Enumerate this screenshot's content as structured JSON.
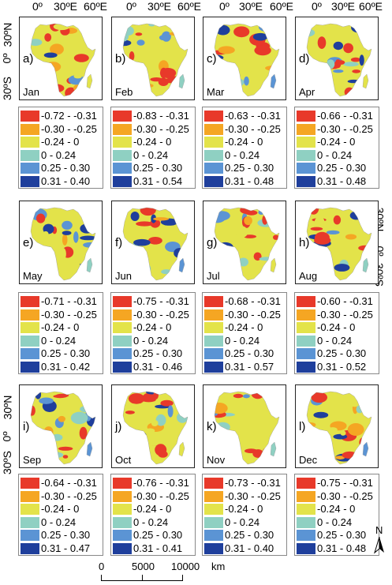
{
  "axes": {
    "top_labels": [
      "0º",
      "30ºE",
      "60ºE"
    ],
    "lat_labels": [
      "30ºN",
      "0º",
      "30ºS"
    ]
  },
  "colors": [
    "#e8392a",
    "#f5a623",
    "#e3e34a",
    "#8fd0c2",
    "#5b94d4",
    "#1f3f9c"
  ],
  "panels": [
    {
      "letter": "a)",
      "month": "Jan",
      "legend": [
        "-0.72 - -0.31",
        "-0.30 - -0.25",
        "-0.24 - 0",
        "0 - 0.24",
        "0.25 - 0.30",
        "0.31 - 0.40"
      ]
    },
    {
      "letter": "b)",
      "month": "Feb",
      "legend": [
        "-0.83 - -0.31",
        "-0.30 - -0.25",
        "-0.24 - 0",
        "0 - 0.24",
        "0.25 - 0.30",
        "0.31 - 0.54"
      ]
    },
    {
      "letter": "c)",
      "month": "Mar",
      "legend": [
        "-0.63 - -0.31",
        "-0.30 - -0.25",
        "-0.24 - 0",
        "0 - 0.24",
        "0.25 - 0.30",
        "0.31 - 0.48"
      ]
    },
    {
      "letter": "d)",
      "month": "Apr",
      "legend": [
        "-0.66 - -0.31",
        "-0.30 - -0.25",
        "-0.24 - 0",
        "0 - 0.24",
        "0.25 - 0.30",
        "0.31 - 0.48"
      ]
    },
    {
      "letter": "e)",
      "month": "May",
      "legend": [
        "-0.71 - -0.31",
        "-0.30 - -0.25",
        "-0.24 - 0",
        "0 - 0.24",
        "0.25 - 0.30",
        "0.31 - 0.42"
      ]
    },
    {
      "letter": "f)",
      "month": "Jun",
      "legend": [
        "-0.75 - -0.31",
        "-0.30 - -0.25",
        "-0.24 - 0",
        "0 - 0.24",
        "0.25 - 0.30",
        "0.31 - 0.46"
      ]
    },
    {
      "letter": "g)",
      "month": "Jul",
      "legend": [
        "-0.68 - -0.31",
        "-0.30 - -0.25",
        "-0.24 - 0",
        "0 - 0.24",
        "0.25 - 0.30",
        "0.31 - 0.57"
      ]
    },
    {
      "letter": "h)",
      "month": "Aug",
      "legend": [
        "-0.60 - -0.31",
        "-0.30 - -0.25",
        "-0.24 - 0",
        "0 - 0.24",
        "0.25 - 0.30",
        "0.31 - 0.52"
      ]
    },
    {
      "letter": "i)",
      "month": "Sep",
      "legend": [
        "-0.64 - -0.31",
        "-0.30 - -0.25",
        "-0.24 - 0",
        "0 - 0.24",
        "0.25 - 0.30",
        "0.31 - 0.47"
      ]
    },
    {
      "letter": "j)",
      "month": "Oct",
      "legend": [
        "-0.76 - -0.31",
        "-0.30 - -0.25",
        "-0.24 - 0",
        "0 - 0.24",
        "0.25 - 0.30",
        "0.31 - 0.41"
      ]
    },
    {
      "letter": "k)",
      "month": "Nov",
      "legend": [
        "-0.73 - -0.31",
        "-0.30 - -0.25",
        "-0.24 - 0",
        "0 - 0.24",
        "0.25 - 0.30",
        "0.31 - 0.40"
      ]
    },
    {
      "letter": "l)",
      "month": "Dec",
      "legend": [
        "-0.75 - -0.31",
        "-0.30 - -0.25",
        "-0.24 - 0",
        "0 - 0.24",
        "0.25 - 0.30",
        "0.31 - 0.48"
      ]
    }
  ],
  "scalebar": {
    "ticks": [
      "0",
      "5000",
      "10000"
    ],
    "unit": "km"
  },
  "north": "N"
}
